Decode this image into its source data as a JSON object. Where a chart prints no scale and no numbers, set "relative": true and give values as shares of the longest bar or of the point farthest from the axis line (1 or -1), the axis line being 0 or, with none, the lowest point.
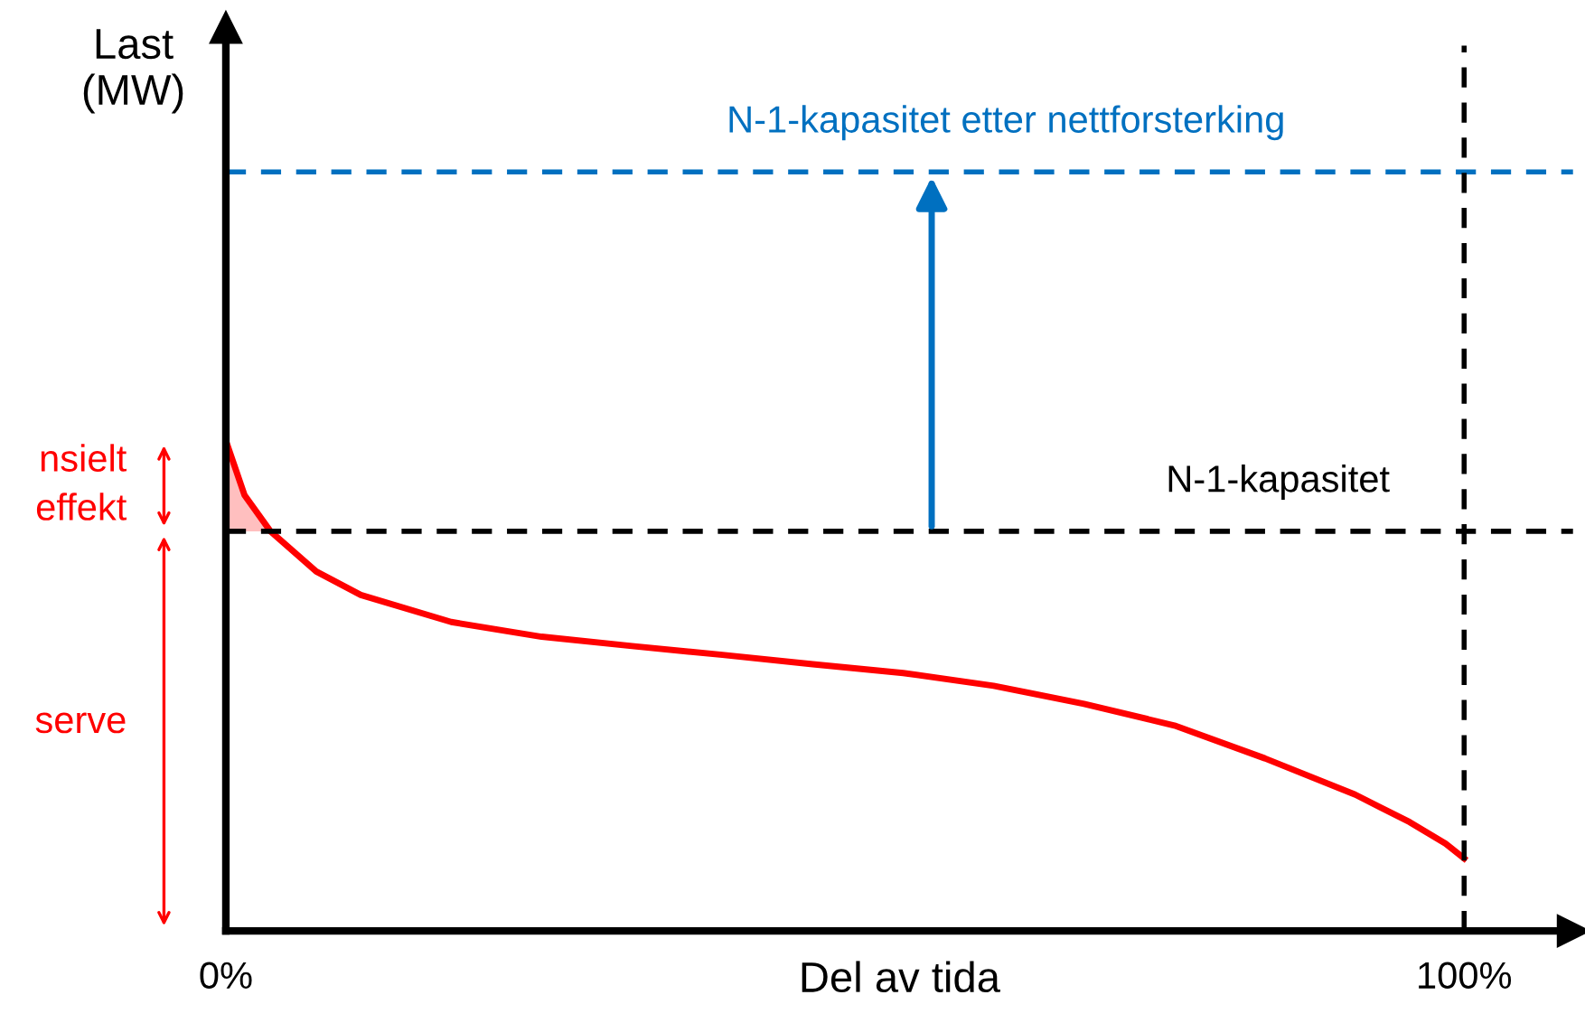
{
  "chart_data": {
    "type": "line",
    "relative": true,
    "xlabel": "Del av tida",
    "x": [
      0,
      1.5,
      3.6,
      7.3,
      10.9,
      18.2,
      25.5,
      32.8,
      40.1,
      47.4,
      54.7,
      62.0,
      69.3,
      76.6,
      83.9,
      91.2,
      95.6,
      98.5,
      100
    ],
    "series": [
      {
        "color": "#ff0000",
        "values": [
          1.0,
          0.889,
          0.815,
          0.733,
          0.685,
          0.63,
          0.6,
          0.581,
          0.563,
          0.544,
          0.526,
          0.5,
          0.463,
          0.419,
          0.352,
          0.278,
          0.222,
          0.178,
          0.148
        ]
      }
    ],
    "xlim": [
      0,
      108.8
    ],
    "xticks": [
      {
        "value": 0,
        "label": "0%"
      },
      {
        "value": 100,
        "label": "100%"
      }
    ],
    "tick_labels": "x",
    "ref_lines": [
      {
        "axis": "y",
        "value": 0.815,
        "label": "N-1-kapasitet",
        "color": "#000000",
        "line_style": "dashed"
      },
      {
        "axis": "y",
        "value": 1.548,
        "label": "N-1-kapasitet etter nettforsterking",
        "color": "#0070c0",
        "line_style": "dashed"
      },
      {
        "axis": "x",
        "value": 100,
        "color": "#000000",
        "line_style": "dashed"
      }
    ],
    "annotations": [
      "nsielt\neffekt",
      "serve",
      "Last\n(MW)"
    ],
    "grid": false,
    "legend": false,
    "marker": "none",
    "line_style": "solid"
  }
}
